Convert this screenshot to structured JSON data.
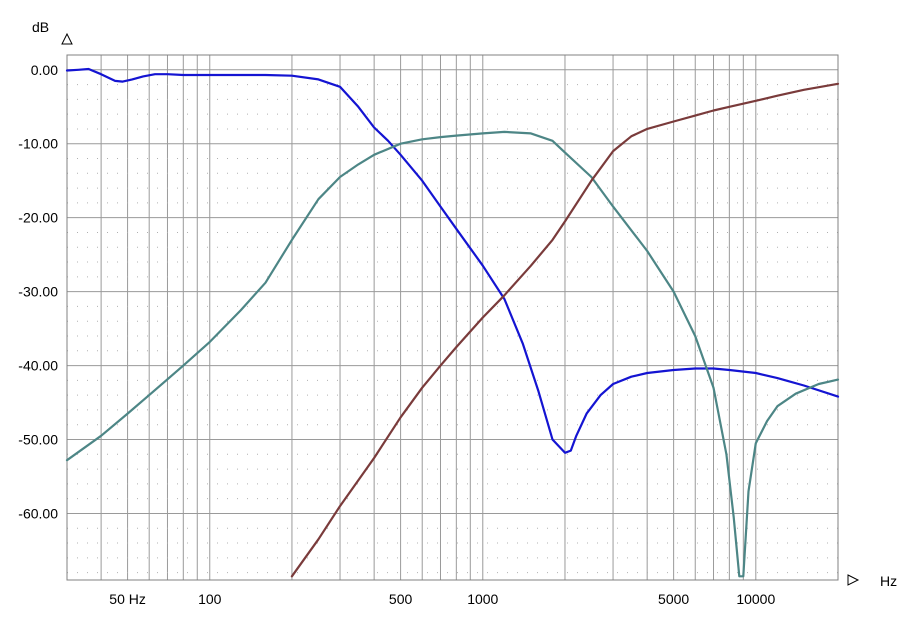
{
  "chart_data": {
    "type": "line",
    "title": "",
    "xlabel": "Hz",
    "ylabel": "dB",
    "x_scale": "log",
    "xlim": [
      30,
      20000
    ],
    "ylim": [
      -69,
      2
    ],
    "grid": true,
    "x_tick_labels": [
      {
        "value": 50,
        "label": "50 Hz"
      },
      {
        "value": 100,
        "label": "100"
      },
      {
        "value": 500,
        "label": "500"
      },
      {
        "value": 1000,
        "label": "1000"
      },
      {
        "value": 5000,
        "label": "5000"
      },
      {
        "value": 10000,
        "label": "10000"
      }
    ],
    "y_ticks": [
      0,
      -10,
      -20,
      -30,
      -40,
      -50,
      -60
    ],
    "y_tick_labels": [
      "0.00",
      "-10.00",
      "-20.00",
      "-30.00",
      "-40.00",
      "-50.00",
      "-60.00"
    ],
    "series": [
      {
        "color": "#1414d2",
        "x": [
          30,
          33,
          36,
          40,
          45,
          48,
          52,
          57,
          63,
          70,
          80,
          100,
          130,
          160,
          200,
          250,
          300,
          350,
          400,
          450,
          500,
          600,
          700,
          800,
          1000,
          1200,
          1400,
          1600,
          1800,
          2000,
          2100,
          2200,
          2400,
          2700,
          3000,
          3500,
          4000,
          5000,
          6000,
          7000,
          8000,
          10000,
          12000,
          15000,
          20000
        ],
        "y": [
          -0.1,
          0.0,
          0.1,
          -0.6,
          -1.5,
          -1.6,
          -1.3,
          -0.9,
          -0.6,
          -0.6,
          -0.7,
          -0.7,
          -0.7,
          -0.7,
          -0.8,
          -1.3,
          -2.3,
          -5.0,
          -7.8,
          -9.6,
          -11.5,
          -15.0,
          -18.5,
          -21.5,
          -26.5,
          -31.0,
          -37.0,
          -43.5,
          -50.0,
          -51.8,
          -51.5,
          -49.5,
          -46.5,
          -44.0,
          -42.5,
          -41.5,
          -41.0,
          -40.6,
          -40.4,
          -40.4,
          -40.6,
          -41.0,
          -41.7,
          -42.7,
          -44.2
        ]
      },
      {
        "color": "#4d8686",
        "x": [
          30,
          40,
          50,
          60,
          80,
          100,
          130,
          160,
          200,
          250,
          300,
          350,
          400,
          500,
          600,
          700,
          800,
          1000,
          1200,
          1500,
          1800,
          2000,
          2500,
          3000,
          4000,
          5000,
          6000,
          7000,
          7800,
          8300,
          8700,
          9000,
          9400,
          10000,
          11000,
          12000,
          14000,
          17000,
          20000
        ],
        "y": [
          -52.8,
          -49.5,
          -46.5,
          -44.0,
          -40.0,
          -36.8,
          -32.5,
          -28.8,
          -23.0,
          -17.5,
          -14.5,
          -12.8,
          -11.5,
          -10.0,
          -9.4,
          -9.1,
          -8.9,
          -8.6,
          -8.4,
          -8.6,
          -9.6,
          -11.2,
          -14.5,
          -18.5,
          -24.5,
          -30.0,
          -36.0,
          -43.0,
          -52.0,
          -60.5,
          -68.5,
          -68.5,
          -57.0,
          -50.5,
          -47.5,
          -45.5,
          -43.8,
          -42.5,
          -41.9
        ]
      },
      {
        "color": "#7a3b3b",
        "x": [
          200,
          250,
          300,
          400,
          500,
          600,
          700,
          800,
          1000,
          1200,
          1500,
          1800,
          2000,
          2500,
          3000,
          3500,
          4000,
          5000,
          6000,
          7000,
          8000,
          10000,
          12000,
          15000,
          20000
        ],
        "y": [
          -68.5,
          -63.5,
          -59.0,
          -52.5,
          -47.0,
          -43.0,
          -40.0,
          -37.5,
          -33.5,
          -30.5,
          -26.5,
          -23.0,
          -20.5,
          -15.0,
          -11.0,
          -9.0,
          -8.0,
          -7.0,
          -6.2,
          -5.5,
          -5.0,
          -4.2,
          -3.5,
          -2.7,
          -1.9
        ]
      }
    ]
  }
}
